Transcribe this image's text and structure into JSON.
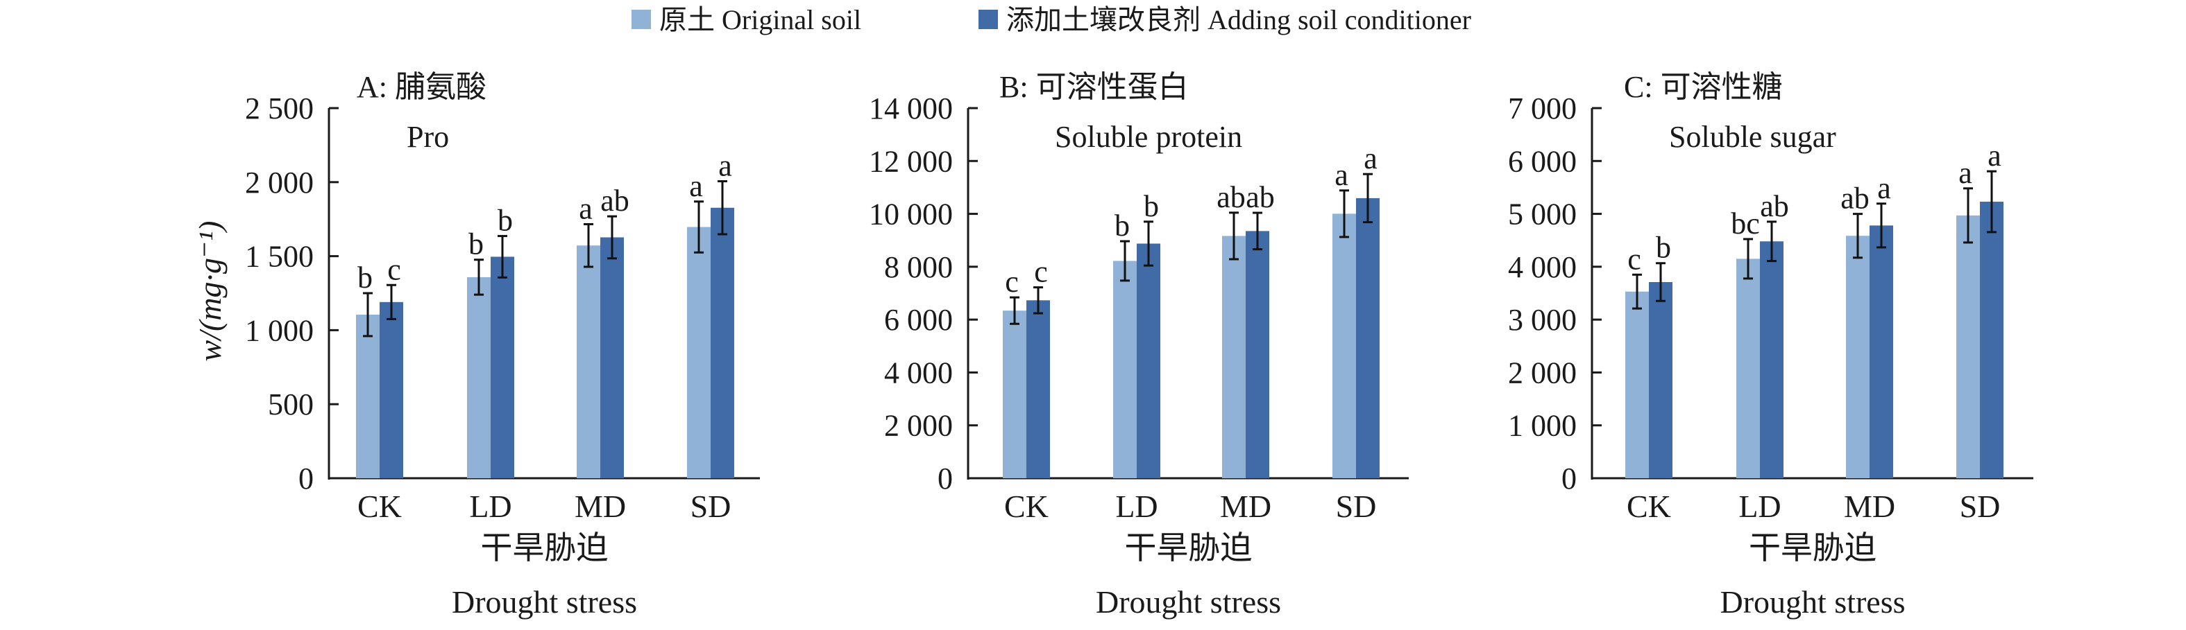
{
  "legend": [
    {
      "label": "原土 Original soil",
      "color": "#8fb2d6"
    },
    {
      "label": "添加土壤改良剂 Adding soil conditioner",
      "color": "#416ba7"
    }
  ],
  "y_axis_label": "w/(mg·g⁻¹)",
  "chart_data": [
    {
      "type": "bar",
      "title": "A: 脯氨酸",
      "subtitle": "Pro",
      "xlabel": "干旱胁迫",
      "xlabel_en": "Drought stress",
      "ylabel": "w/(mg·g⁻¹)",
      "ylim": [
        0,
        2500
      ],
      "yticks": [
        "0",
        "500",
        "1 000",
        "1 500",
        "2 000",
        "2 500"
      ],
      "categories": [
        "CK",
        "LD",
        "MD",
        "SD"
      ],
      "series": [
        {
          "name": "原土 Original soil",
          "values": [
            1105,
            1358,
            1572,
            1697
          ],
          "errors": [
            145,
            118,
            144,
            172
          ],
          "letters": [
            "b",
            "b",
            "a",
            "a"
          ]
        },
        {
          "name": "添加土壤改良剂 Adding soil conditioner",
          "values": [
            1190,
            1496,
            1627,
            1827
          ],
          "errors": [
            115,
            140,
            142,
            179
          ],
          "letters": [
            "c",
            "b",
            "ab",
            "a"
          ]
        }
      ]
    },
    {
      "type": "bar",
      "title": "B: 可溶性蛋白",
      "subtitle": "Soluble protein",
      "xlabel": "干旱胁迫",
      "xlabel_en": "Drought stress",
      "ylabel": "w/(mg·g⁻¹)",
      "ylim": [
        0,
        14000
      ],
      "yticks": [
        "0",
        "2 000",
        "4 000",
        "6 000",
        "8 000",
        "10 000",
        "12 000",
        "14 000"
      ],
      "categories": [
        "CK",
        "LD",
        "MD",
        "SD"
      ],
      "series": [
        {
          "name": "原土 Original soil",
          "values": [
            6340,
            8220,
            9165,
            10005
          ],
          "errors": [
            500,
            745,
            880,
            880
          ],
          "letters": [
            "c",
            "b",
            "ab",
            "a"
          ]
        },
        {
          "name": "添加土壤改良剂 Adding soil conditioner",
          "values": [
            6730,
            8875,
            9350,
            10595
          ],
          "errors": [
            490,
            830,
            690,
            910
          ],
          "letters": [
            "c",
            "b",
            "ab",
            "a"
          ]
        }
      ]
    },
    {
      "type": "bar",
      "title": "C: 可溶性糖",
      "subtitle": "Soluble sugar",
      "xlabel": "干旱胁迫",
      "xlabel_en": "Drought stress",
      "ylabel": "w/(mg·g⁻¹)",
      "ylim": [
        0,
        7000
      ],
      "yticks": [
        "0",
        "1 000",
        "2 000",
        "3 000",
        "4 000",
        "5 000",
        "6 000",
        "7 000"
      ],
      "categories": [
        "CK",
        "LD",
        "MD",
        "SD"
      ],
      "series": [
        {
          "name": "原土 Original soil",
          "values": [
            3530,
            4150,
            4585,
            4970
          ],
          "errors": [
            320,
            373,
            414,
            512
          ],
          "letters": [
            "c",
            "bc",
            "ab",
            "a"
          ]
        },
        {
          "name": "添加土壤改良剂 Adding soil conditioner",
          "values": [
            3710,
            4480,
            4780,
            5230
          ],
          "errors": [
            357,
            372,
            414,
            575
          ],
          "letters": [
            "b",
            "ab",
            "a",
            "a"
          ]
        }
      ]
    }
  ]
}
